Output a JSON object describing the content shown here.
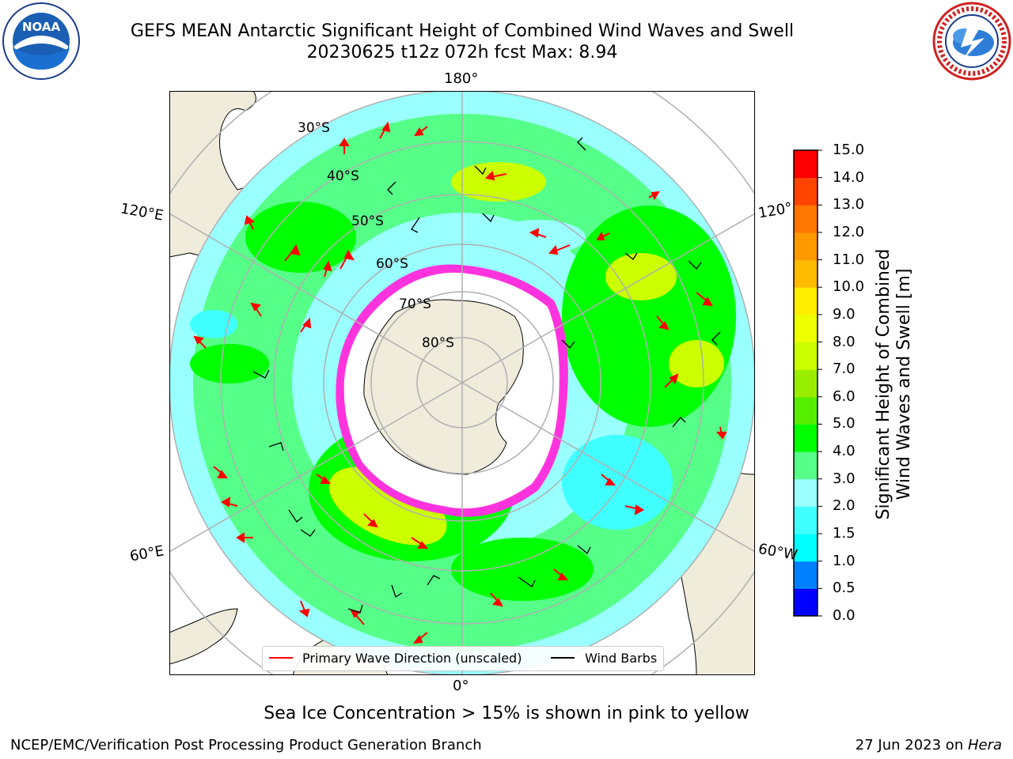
{
  "header": {
    "title_line1": "GEFS MEAN Antarctic Significant Height of Combined Wind Waves and Swell",
    "title_line2": "20230625 t12z 072h fcst   Max: 8.94"
  },
  "logos": {
    "left": {
      "name": "NOAA",
      "text": "NOAA",
      "ring_text": "NATIONAL OCEANIC AND ATMOSPHERIC ADMINISTRATION · U.S. DEPARTMENT OF COMMERCE"
    },
    "right": {
      "name": "National Weather Service",
      "ring_text": "NATIONAL WEATHER SERVICE"
    }
  },
  "map": {
    "projection": "south-polar-stereographic",
    "lon_labels": {
      "top": "180°",
      "bottom": "0°",
      "upper_left": "120°E",
      "lower_left": "60°E",
      "upper_right": "120°",
      "lower_right": "60°W"
    },
    "lat_labels": [
      "30°S",
      "40°S",
      "50°S",
      "60°S",
      "70°S",
      "80°S"
    ],
    "colors": {
      "land": "#efecdc",
      "ice": "#ffffff",
      "ice_edge": "#ff33dd",
      "grid": "#b0b0b0"
    }
  },
  "colorbar": {
    "label_line1": "Significant Height of Combined",
    "label_line2": "Wind Waves and Swell [m]",
    "ticks": [
      "15.0",
      "14.0",
      "13.0",
      "12.0",
      "11.0",
      "10.0",
      "9.0",
      "8.0",
      "7.0",
      "6.0",
      "5.0",
      "4.0",
      "3.0",
      "2.0",
      "1.5",
      "1.0",
      "0.5",
      "0.0"
    ],
    "bands": [
      {
        "from": 0.0,
        "to": 0.5,
        "color": "#0000ff"
      },
      {
        "from": 0.5,
        "to": 1.0,
        "color": "#0080ff"
      },
      {
        "from": 1.0,
        "to": 1.5,
        "color": "#00ffff"
      },
      {
        "from": 1.5,
        "to": 2.0,
        "color": "#40ffff"
      },
      {
        "from": 2.0,
        "to": 3.0,
        "color": "#99ffff"
      },
      {
        "from": 3.0,
        "to": 4.0,
        "color": "#55ff88"
      },
      {
        "from": 4.0,
        "to": 5.0,
        "color": "#00ff00"
      },
      {
        "from": 5.0,
        "to": 6.0,
        "color": "#55ee00"
      },
      {
        "from": 6.0,
        "to": 7.0,
        "color": "#99ee00"
      },
      {
        "from": 7.0,
        "to": 8.0,
        "color": "#ccff00"
      },
      {
        "from": 8.0,
        "to": 9.0,
        "color": "#eeff00"
      },
      {
        "from": 9.0,
        "to": 10.0,
        "color": "#ffee00"
      },
      {
        "from": 10.0,
        "to": 11.0,
        "color": "#ffbb00"
      },
      {
        "from": 11.0,
        "to": 12.0,
        "color": "#ff9900"
      },
      {
        "from": 12.0,
        "to": 13.0,
        "color": "#ff7700"
      },
      {
        "from": 13.0,
        "to": 14.0,
        "color": "#ff4400"
      },
      {
        "from": 14.0,
        "to": 15.0,
        "color": "#ff0000"
      }
    ]
  },
  "legend": {
    "wave_label": "Primary Wave Direction (unscaled)",
    "wave_color": "#ff0000",
    "barb_label": "Wind Barbs",
    "barb_color": "#000000"
  },
  "notes": {
    "sea_ice": "Sea Ice Concentration > 15% is shown in pink to yellow"
  },
  "footer": {
    "left": "NCEP/EMC/Verification Post Processing Product Generation Branch",
    "right_date": "27 Jun 2023 on ",
    "right_host": "Hera"
  }
}
